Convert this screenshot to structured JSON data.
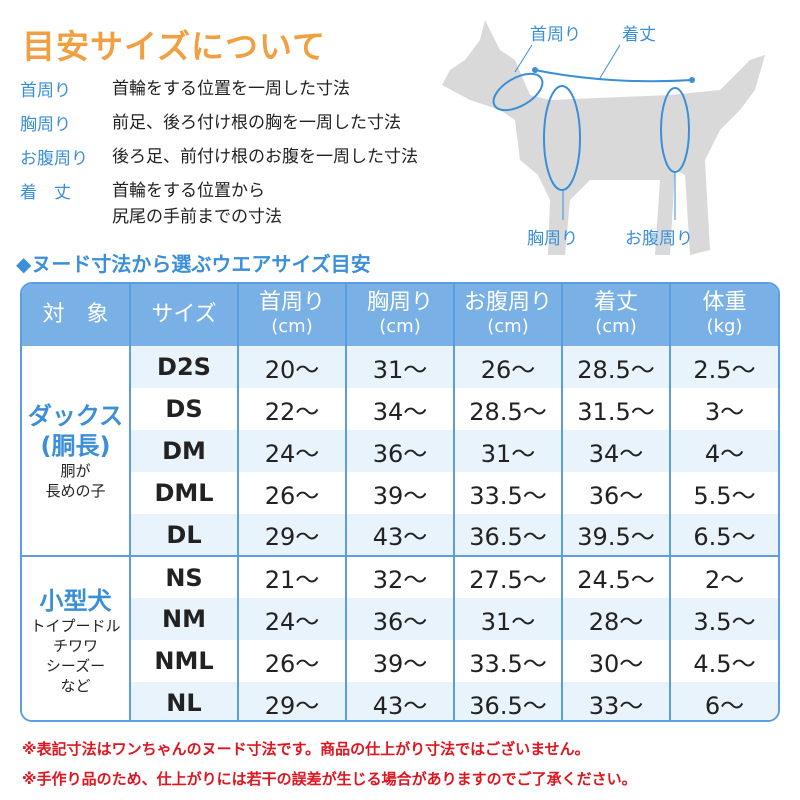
{
  "title": "目安サイズについて",
  "definitions": [
    {
      "term": "首周り",
      "desc": "首輪をする位置を一周した寸法"
    },
    {
      "term": "胸周り",
      "desc": "前足、後ろ付け根の胸を一周した寸法"
    },
    {
      "term": "お腹周り",
      "desc": "後ろ足、前付け根のお腹を一周した寸法"
    },
    {
      "term": "着　丈",
      "desc": "首輪をする位置から",
      "desc2": "尻尾の手前までの寸法"
    }
  ],
  "diagram": {
    "neck": "首周り",
    "length": "着丈",
    "chest": "胸周り",
    "belly": "お腹周り"
  },
  "subtitle": "◆ヌード寸法から選ぶウエアサイズ目安",
  "table": {
    "headers": [
      {
        "label": "対　象",
        "unit": ""
      },
      {
        "label": "サイズ",
        "unit": ""
      },
      {
        "label": "首周り",
        "unit": "(cm)"
      },
      {
        "label": "胸周り",
        "unit": "(cm)"
      },
      {
        "label": "お腹周り",
        "unit": "(cm)"
      },
      {
        "label": "着丈",
        "unit": "(cm)"
      },
      {
        "label": "体重",
        "unit": "(kg)"
      }
    ],
    "groups": [
      {
        "name": "ダックス",
        "name2": "(胴長)",
        "desc": "胴が",
        "desc2": "長めの子",
        "rows": [
          [
            "D2S",
            "20～",
            "31～",
            "26～",
            "28.5～",
            "2.5～"
          ],
          [
            "DS",
            "22～",
            "34～",
            "28.5～",
            "31.5～",
            "3～"
          ],
          [
            "DM",
            "24～",
            "36～",
            "31～",
            "34～",
            "4～"
          ],
          [
            "DML",
            "26～",
            "39～",
            "33.5～",
            "36～",
            "5.5～"
          ],
          [
            "DL",
            "29～",
            "43～",
            "36.5～",
            "39.5～",
            "6.5～"
          ]
        ]
      },
      {
        "name": "小型犬",
        "name2": "",
        "desc": "トイプードル",
        "desc2": "チワワ",
        "desc3": "シーズー",
        "desc4": "など",
        "rows": [
          [
            "NS",
            "21～",
            "32～",
            "27.5～",
            "24.5～",
            "2～"
          ],
          [
            "NM",
            "24～",
            "36～",
            "31～",
            "28～",
            "3.5～"
          ],
          [
            "NML",
            "26～",
            "39～",
            "33.5～",
            "30～",
            "4.5～"
          ],
          [
            "NL",
            "29～",
            "43～",
            "36.5～",
            "33～",
            "6～"
          ]
        ]
      }
    ]
  },
  "notes": [
    "※表記寸法はワンちゃんのヌード寸法です。商品の仕上がり寸法ではございません。",
    "※手作り品のため、仕上がりには若干の誤差が生じる場合がありますのでご了承ください。"
  ],
  "colors": {
    "accent": "#3a8fd8",
    "title": "#f0a040",
    "header": "#79b1e6",
    "note": "#e0141e",
    "dog": "#d9d9d9"
  }
}
